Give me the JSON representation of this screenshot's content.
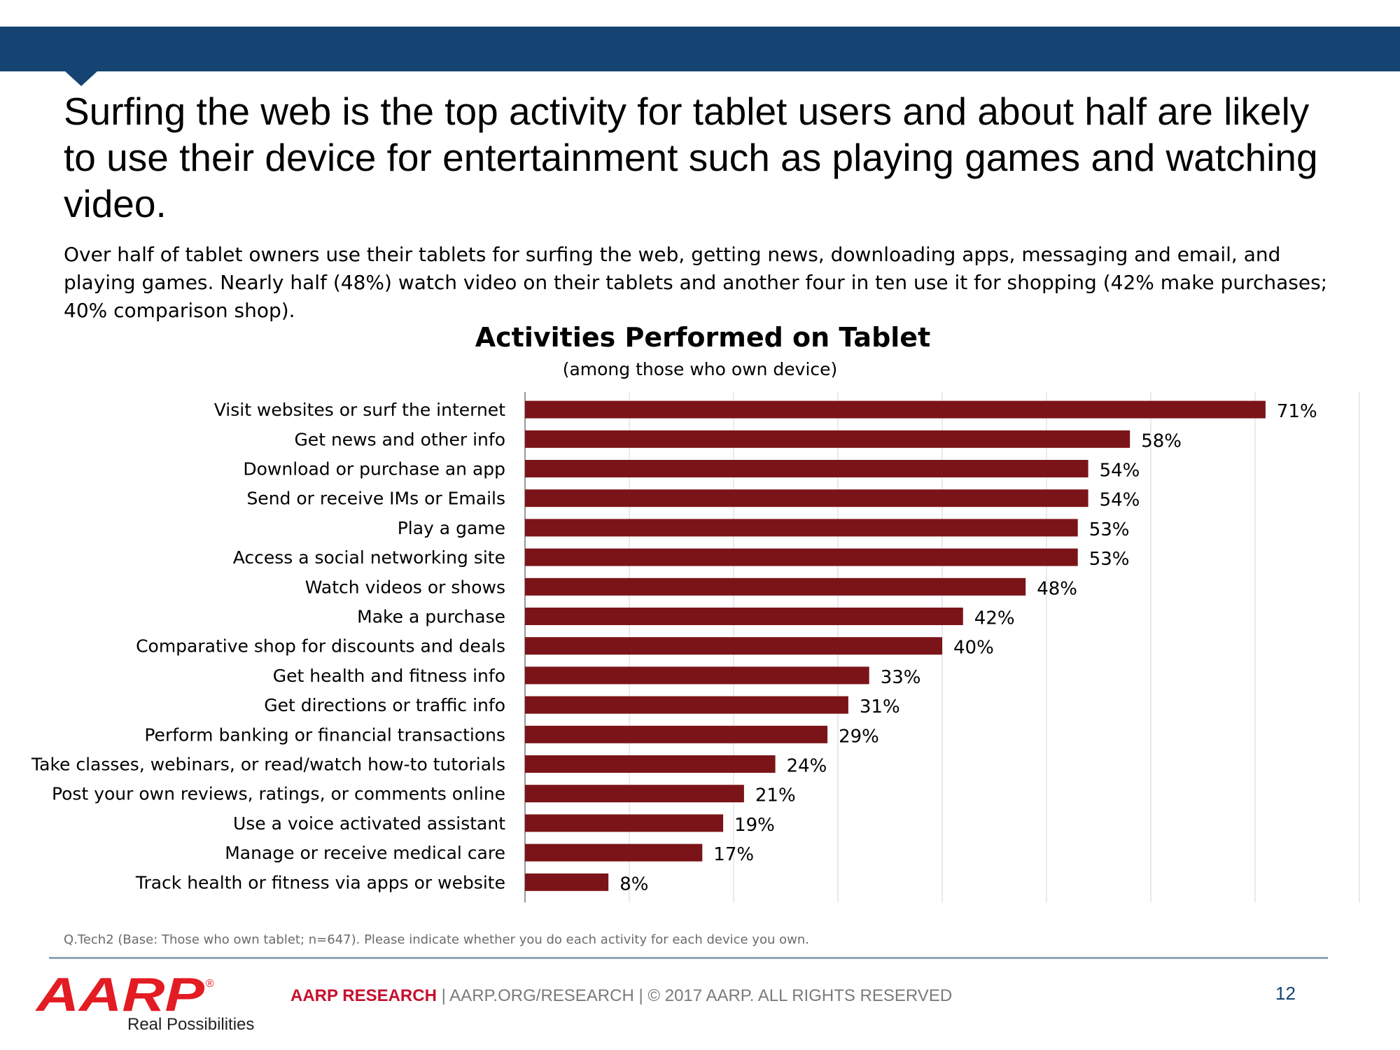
{
  "slide": {
    "headline": "Surfing the web is the top activity for tablet users and about half are likely to use their device for entertainment such as playing games and watching video.",
    "summary": "Over half of tablet owners use their tablets for surfing the web, getting news, downloading apps, messaging and email, and playing games. Nearly half (48%) watch video on their tablets and another four in ten use it for shopping (42% make purchases; 40% comparison shop).",
    "footnote": "Q.Tech2 (Base: Those who own tablet; n=647). Please indicate whether you do each activity for each device you own.",
    "page_number": "12"
  },
  "footer": {
    "brand": "AARP RESEARCH",
    "separator": "|",
    "site": "AARP.ORG/RESEARCH",
    "copyright": "© 2017 AARP. ALL RIGHTS RESERVED",
    "logo_text": "AARP",
    "logo_registered": "®",
    "logo_tagline": "Real Possibilities"
  },
  "colors": {
    "band": "#154473",
    "bar": "#7b1418",
    "logo_red": "#e31b23"
  },
  "chart_data": {
    "type": "bar",
    "orientation": "horizontal",
    "title": "Activities Performed on Tablet",
    "subtitle": "(among those who own device)",
    "categories": [
      "Visit websites or surf the internet",
      "Get news and other info",
      "Download or purchase an app",
      "Send or receive IMs or Emails",
      "Play a game",
      "Access a social networking site",
      "Watch videos or shows",
      "Make a purchase",
      "Comparative shop for discounts and deals",
      "Get health and fitness info",
      "Get directions or traffic info",
      "Perform banking or financial transactions",
      "Take classes, webinars, or read/watch how-to tutorials",
      "Post your own reviews, ratings, or comments online",
      "Use a voice activated assistant",
      "Manage or receive medical care",
      "Track health or fitness via apps or website"
    ],
    "values": [
      71,
      58,
      54,
      54,
      53,
      53,
      48,
      42,
      40,
      33,
      31,
      29,
      24,
      21,
      19,
      17,
      8
    ],
    "value_suffix": "%",
    "xlim": [
      0,
      80
    ],
    "grid": true
  }
}
